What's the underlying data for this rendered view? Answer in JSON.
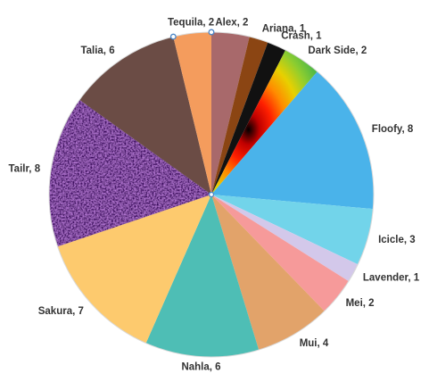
{
  "chart_data": {
    "type": "pie",
    "title": "",
    "slices": [
      {
        "label": "Alex",
        "value": 2,
        "display": "Alex, 2",
        "color": "#a8696b",
        "fill_style": "solid"
      },
      {
        "label": "Ariana",
        "value": 1,
        "display": "Ariana, 1",
        "color": "#8b4513",
        "fill_style": "solid"
      },
      {
        "label": "Crash",
        "value": 1,
        "display": "Crash, 1",
        "color": "#111111",
        "fill_style": "solid"
      },
      {
        "label": "Dark Side",
        "value": 2,
        "display": "Dark Side, 2",
        "color": "#d8d020",
        "fill_style": "radial-gradient"
      },
      {
        "label": "Floofy",
        "value": 8,
        "display": "Floofy, 8",
        "color": "#4ab3ea",
        "fill_style": "solid"
      },
      {
        "label": "Icicle",
        "value": 3,
        "display": "Icicle, 3",
        "color": "#72d4ea",
        "fill_style": "solid"
      },
      {
        "label": "Lavender",
        "value": 1,
        "display": "Lavender, 1",
        "color": "#d3c8ea",
        "fill_style": "solid"
      },
      {
        "label": "Mei",
        "value": 2,
        "display": "Mei, 2",
        "color": "#f69a9a",
        "fill_style": "solid"
      },
      {
        "label": "Mui",
        "value": 4,
        "display": "Mui, 4",
        "color": "#e2a36a",
        "fill_style": "solid"
      },
      {
        "label": "Nahla",
        "value": 6,
        "display": "Nahla, 6",
        "color": "#4ebeb5",
        "fill_style": "solid"
      },
      {
        "label": "Sakura",
        "value": 7,
        "display": "Sakura, 7",
        "color": "#fdca6e",
        "fill_style": "solid"
      },
      {
        "label": "Tailr",
        "value": 8,
        "display": "Tailr, 8",
        "color": "#3d0f60",
        "fill_style": "texture"
      },
      {
        "label": "Talia",
        "value": 6,
        "display": "Talia, 6",
        "color": "#6b4c45",
        "fill_style": "solid"
      },
      {
        "label": "Tequila",
        "value": 2,
        "display": "Tequila, 2",
        "color": "#f49c5d",
        "fill_style": "solid"
      }
    ],
    "start": "top",
    "direction": "clockwise",
    "legend": "none",
    "data_labels": "outside-end",
    "selected": true
  }
}
